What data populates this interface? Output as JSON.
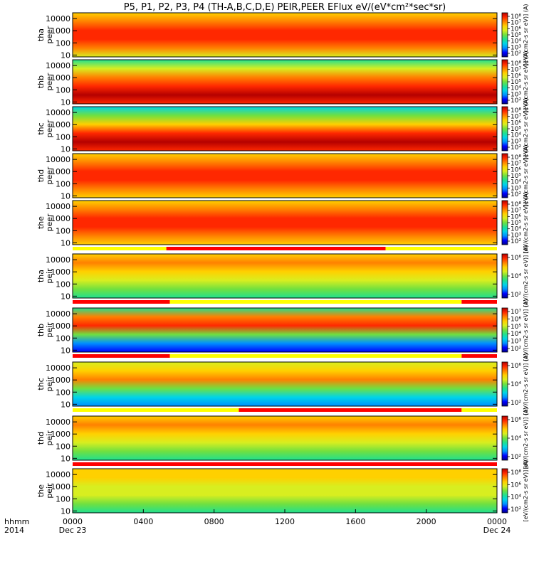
{
  "chart_data": {
    "type": "heatmap",
    "title": "P5, P1, P2, P3, P4 (TH-A,B,C,D,E) PEIR,PEER EFlux eV/(eV*cm²*sec*sr)",
    "x_axis": {
      "ticks": [
        "0000",
        "0400",
        "0800",
        "1200",
        "1600",
        "2000",
        "0000"
      ],
      "tick_hours": [
        0,
        4,
        8,
        12,
        16,
        20,
        24
      ],
      "range_hours": [
        0,
        24
      ],
      "date_labels": [
        {
          "hour": 0,
          "text": "Dec 23"
        },
        {
          "hour": 24,
          "text": "Dec 24"
        }
      ],
      "row_labels": [
        "hhmm",
        "2014"
      ]
    },
    "y_axis": {
      "scale": "log",
      "range_eV": [
        7,
        30000
      ],
      "ticks": [
        "10",
        "100",
        "1000",
        "10000"
      ],
      "tick_values": [
        10,
        100,
        1000,
        10000
      ]
    },
    "colorbar_label": "[eV/(cm2-s sr eV)] (A)",
    "colormap": [
      "#00008c",
      "#0000ff",
      "#0090ff",
      "#00d4e8",
      "#20e090",
      "#70e040",
      "#d8ee20",
      "#ffd000",
      "#ff8000",
      "#ff2800",
      "#b40000"
    ],
    "bar_colors": {
      "red": "#ff0000",
      "yellow": "#ffff00"
    },
    "panels": [
      {
        "line1": "tha",
        "line2": "peer",
        "cb_ticks": [
          "10⁸",
          "10⁷",
          "10⁶",
          "10⁵",
          "10⁴",
          "10³",
          "10²"
        ],
        "bars": []
      },
      {
        "line1": "thb",
        "line2": "peer",
        "cb_ticks": [
          "10⁸",
          "10⁷",
          "10⁶",
          "10⁵",
          "10⁴",
          "10³",
          "10²"
        ],
        "bars": []
      },
      {
        "line1": "thc",
        "line2": "peer",
        "cb_ticks": [
          "10⁸",
          "10⁷",
          "10⁶",
          "10⁵",
          "10⁴",
          "10³",
          "10²"
        ],
        "bars": []
      },
      {
        "line1": "thd",
        "line2": "peer",
        "cb_ticks": [
          "10⁸",
          "10⁷",
          "10⁶",
          "10⁵",
          "10⁴",
          "10³",
          "10²"
        ],
        "bars": []
      },
      {
        "line1": "the",
        "line2": "peer",
        "cb_ticks": [
          "10⁸",
          "10⁷",
          "10⁶",
          "10⁵",
          "10⁴",
          "10³",
          "10²"
        ],
        "bars": [
          {
            "color": "yellow",
            "start_hour": 0,
            "end_hour": 5.3
          },
          {
            "color": "red",
            "start_hour": 5.3,
            "end_hour": 17.7
          },
          {
            "color": "yellow",
            "start_hour": 17.7,
            "end_hour": 24
          }
        ]
      },
      {
        "line1": "tha",
        "line2": "peir",
        "cb_ticks": [
          "10⁶",
          "10⁴",
          "10²"
        ],
        "bars": [
          {
            "color": "red",
            "start_hour": 0,
            "end_hour": 5.5
          },
          {
            "color": "yellow",
            "start_hour": 5.5,
            "end_hour": 22
          },
          {
            "color": "red",
            "start_hour": 22,
            "end_hour": 24
          }
        ]
      },
      {
        "line1": "thb",
        "line2": "peir",
        "cb_ticks": [
          "10⁷",
          "10⁶",
          "10⁵",
          "10⁴",
          "10³",
          "10²"
        ],
        "bars": [
          {
            "color": "red",
            "start_hour": 0,
            "end_hour": 5.5
          },
          {
            "color": "yellow",
            "start_hour": 5.5,
            "end_hour": 22
          },
          {
            "color": "red",
            "start_hour": 22,
            "end_hour": 24
          }
        ]
      },
      {
        "line1": "thc",
        "line2": "peir",
        "cb_ticks": [
          "10⁶",
          "10⁴",
          "10²"
        ],
        "bars": [
          {
            "color": "yellow",
            "start_hour": 0,
            "end_hour": 9.4
          },
          {
            "color": "red",
            "start_hour": 9.4,
            "end_hour": 22
          },
          {
            "color": "yellow",
            "start_hour": 22,
            "end_hour": 24
          }
        ]
      },
      {
        "line1": "thd",
        "line2": "peir",
        "cb_ticks": [
          "10⁶",
          "10⁴",
          "10²"
        ],
        "bars": [
          {
            "color": "red",
            "start_hour": 0,
            "end_hour": 24
          }
        ]
      },
      {
        "line1": "the",
        "line2": "peir",
        "cb_ticks": [
          "10⁸",
          "10⁶",
          "10⁴",
          "10²"
        ],
        "bars": []
      }
    ]
  }
}
